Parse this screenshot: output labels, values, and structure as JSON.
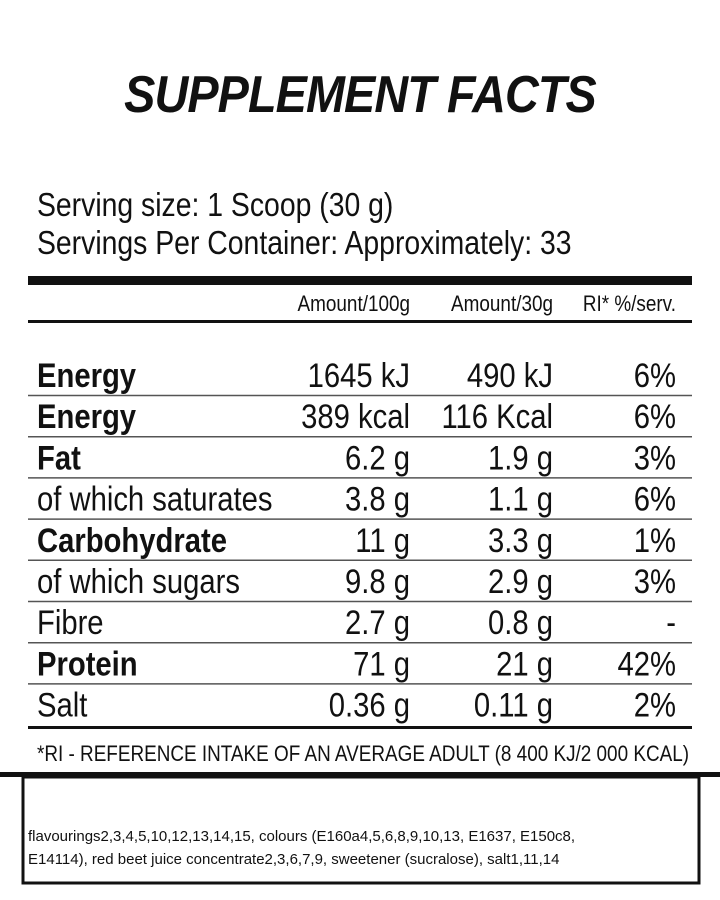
{
  "title": "SUPPLEMENT FACTS",
  "serving": [
    "Serving size: 1 Scoop (30 g)",
    "Servings Per Container: Approximately: 33"
  ],
  "table": {
    "header": [
      "Amount/100g",
      "Amount/30g",
      "RI* %/serv."
    ],
    "rows": [
      {
        "cells": [
          "Energy",
          "1645 kJ",
          "490 kJ",
          "6%"
        ],
        "bold": true
      },
      {
        "cells": [
          "Energy",
          "389 kcal",
          "116 Kcal",
          "6%"
        ],
        "bold": true
      },
      {
        "cells": [
          "Fat",
          "6.2 g",
          "1.9 g",
          "3%"
        ],
        "bold": true
      },
      {
        "cells": [
          "of which saturates",
          "3.8 g",
          "1.1 g",
          "6%"
        ],
        "bold": false
      },
      {
        "cells": [
          "Carbohydrate",
          "11 g",
          "3.3 g",
          "1%"
        ],
        "bold": true
      },
      {
        "cells": [
          "of which sugars",
          "9.8 g",
          "2.9 g",
          "3%"
        ],
        "bold": false
      },
      {
        "cells": [
          "Fibre",
          "2.7 g",
          "0.8 g",
          "-"
        ],
        "bold": false
      },
      {
        "cells": [
          "Protein",
          "71 g",
          "21 g",
          "42%"
        ],
        "bold": true
      },
      {
        "cells": [
          "Salt",
          "0.36 g",
          "0.11 g",
          "2%"
        ],
        "bold": false
      }
    ]
  },
  "footnote": "*RI - REFERENCE INTAKE OF AN AVERAGE ADULT (8 400 KJ/2 000 KCAL)",
  "ingredients": [
    "flavourings2,3,4,5,10,12,13,14,15, colours (E160a4,5,6,8,9,10,13, E1637, E150c8,",
    "E14114), red beet juice concentrate2,3,6,7,9, sweetener (sucralose), salt1,11,14"
  ]
}
